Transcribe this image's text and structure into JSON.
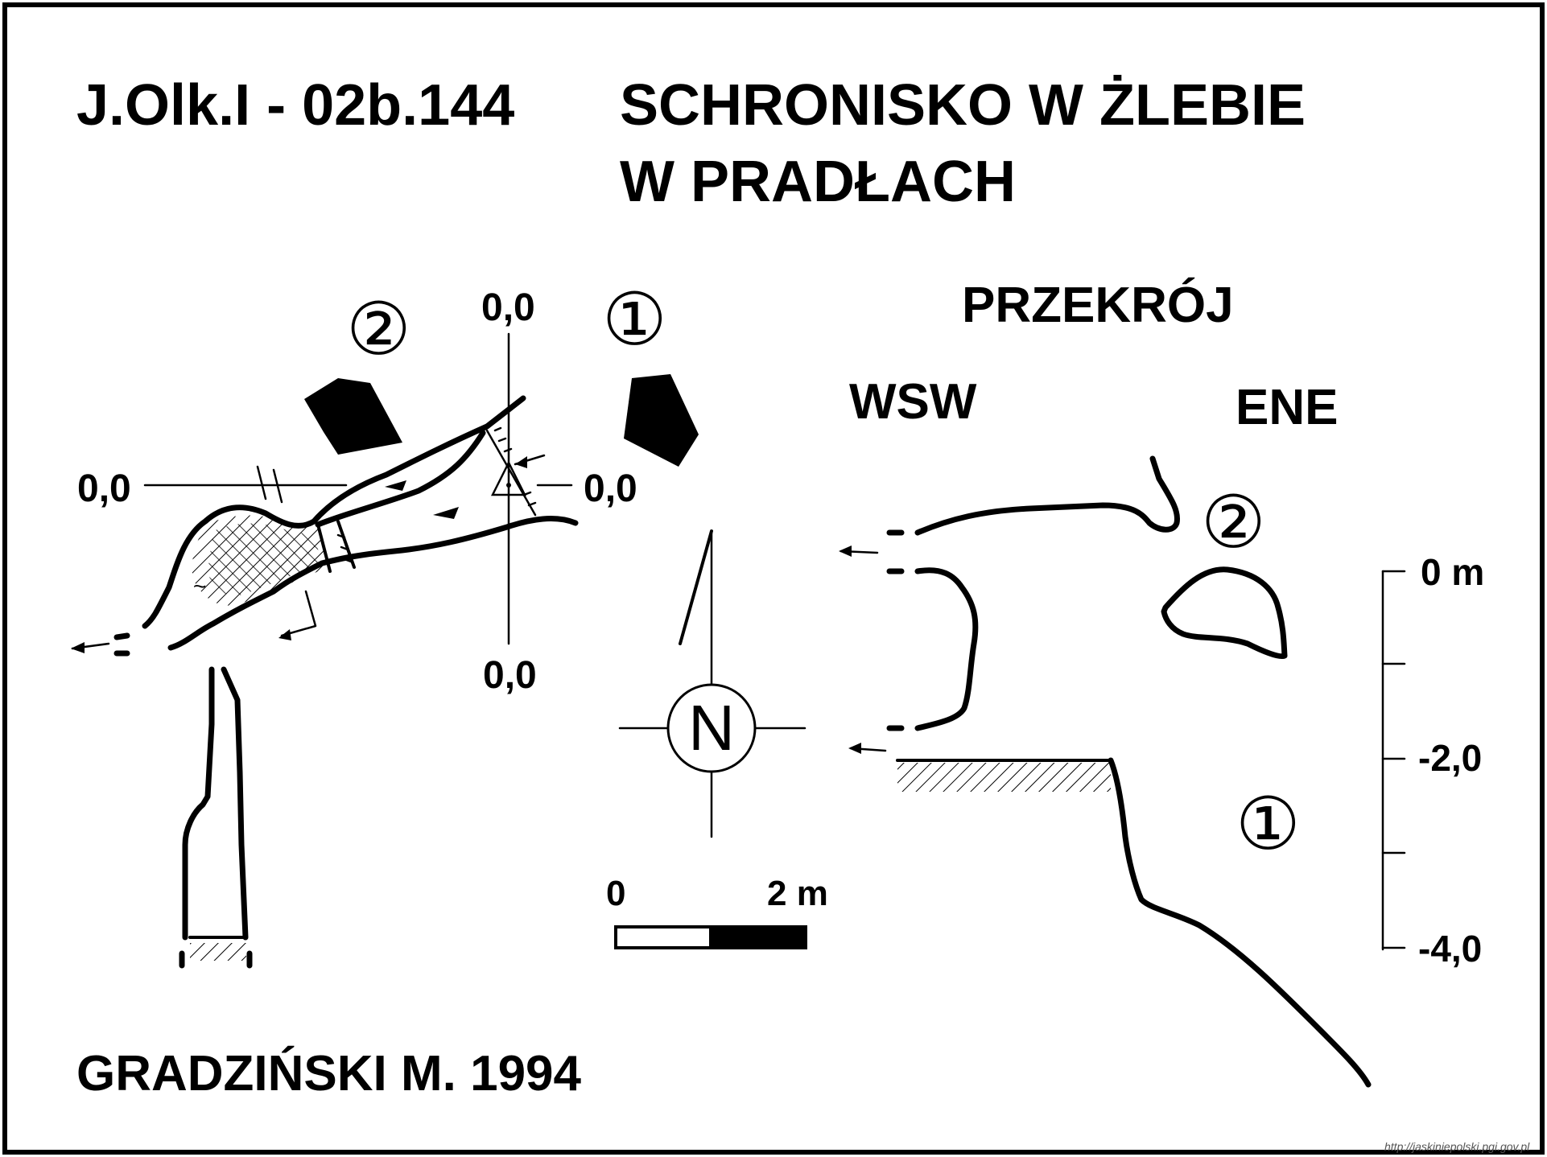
{
  "title": {
    "code": "J.Olk.I - 02b.144",
    "name_line1": "SCHRONISKO W ŻLEBIE",
    "name_line2": "W PRADŁACH"
  },
  "plan": {
    "entrance_labels": [
      "②",
      "①"
    ],
    "datum_labels": {
      "top": "0,0",
      "left": "0,0",
      "right": "0,0",
      "bottom": "0,0"
    },
    "north_label": "N",
    "scale_bar": {
      "start_label": "0",
      "end_label": "2 m",
      "length_m": 2
    }
  },
  "section": {
    "title": "PRZEKRÓJ",
    "left_direction": "WSW",
    "right_direction": "ENE",
    "entrance_labels": [
      "②",
      "①"
    ],
    "depth_scale": {
      "ticks": [
        "0 m",
        "-2,0",
        "-4,0"
      ],
      "range_m": [
        0,
        -4
      ]
    }
  },
  "author": "GRADZIŃSKI M. 1994",
  "source_url": "http://jaskiniepolski.pgi.gov.pl"
}
